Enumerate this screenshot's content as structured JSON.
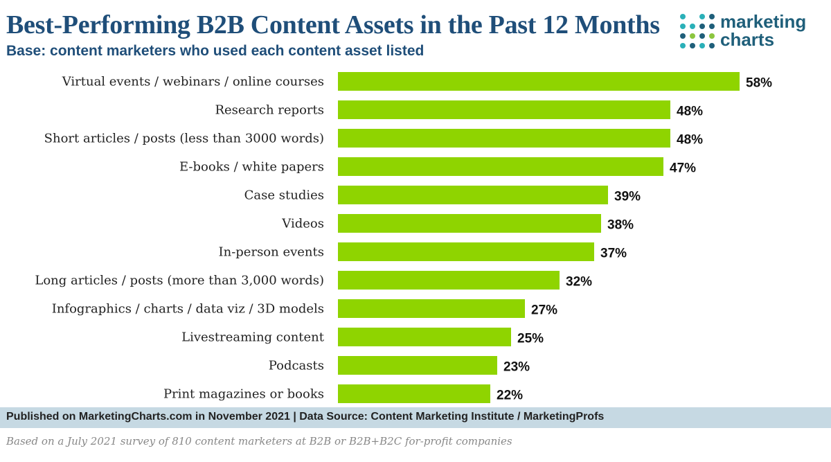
{
  "header": {
    "title": "Best-Performing B2B Content Assets in the Past 12 Months",
    "subtitle": "Base: content marketers who used each content asset listed"
  },
  "logo": {
    "line1": "marketing",
    "line2": "charts",
    "dot_colors": [
      "#2ab0b8",
      "#1f5f7a",
      "#8cc63f"
    ]
  },
  "chart_data": {
    "type": "bar",
    "orientation": "horizontal",
    "categories": [
      "Virtual events / webinars / online courses",
      "Research reports",
      "Short articles / posts (less than 3000 words)",
      "E-books / white papers",
      "Case studies",
      "Videos",
      "In-person events",
      "Long articles / posts (more than 3,000 words)",
      "Infographics / charts / data viz / 3D models",
      "Livestreaming content",
      "Podcasts",
      "Print magazines or books"
    ],
    "values": [
      58,
      48,
      48,
      47,
      39,
      38,
      37,
      32,
      27,
      25,
      23,
      22
    ],
    "value_labels": [
      "58%",
      "48%",
      "48%",
      "47%",
      "39%",
      "38%",
      "37%",
      "32%",
      "27%",
      "25%",
      "23%",
      "22%"
    ],
    "unit": "%",
    "xlim": [
      0,
      64
    ],
    "bar_color": "#8fd400",
    "grid": false,
    "legend": "none"
  },
  "footer": {
    "source": "Published on MarketingCharts.com in November 2021 | Data Source: Content Marketing Institute / MarketingProfs",
    "note": "Based on a July 2021 survey of 810 content marketers at B2B or B2B+B2C for-profit companies"
  }
}
